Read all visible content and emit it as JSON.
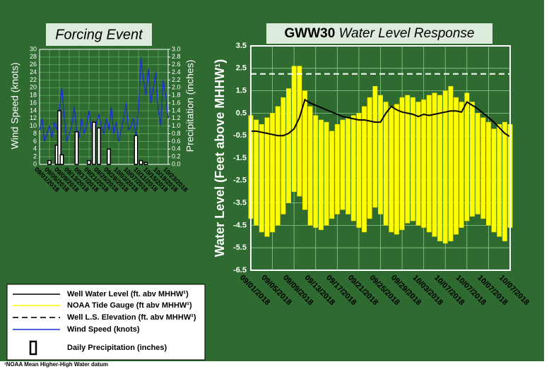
{
  "chart_data": [
    {
      "type": "combo",
      "title": "Forcing Event",
      "ylabel": "Wind Speed (knots)",
      "y2label": "Precipitation (inches)",
      "x": [
        "09/01/2018",
        "09/02/2018",
        "09/03/2018",
        "09/04/2018",
        "09/05/2018",
        "09/06/2018",
        "09/07/2018",
        "09/08/2018",
        "09/09/2018",
        "09/10/2018",
        "09/11/2018",
        "09/12/2018",
        "09/13/2018",
        "09/14/2018",
        "09/15/2018",
        "09/16/2018",
        "09/17/2018",
        "09/18/2018",
        "09/19/2018",
        "09/20/2018",
        "09/21/2018",
        "09/22/2018",
        "09/23/2018",
        "09/24/2018",
        "09/25/2018",
        "09/26/2018",
        "09/27/2018",
        "09/28/2018",
        "09/29/2018",
        "09/30/2018",
        "10/01/2018",
        "10/02/2018",
        "10/03/2018",
        "10/04/2018",
        "10/05/2018",
        "10/06/2018",
        "10/07/2018",
        "10/08/2018",
        "10/09/2018",
        "10/10/2018",
        "10/11/2018",
        "10/12/2018",
        "10/13/2018",
        "10/14/2018",
        "10/15/2018",
        "10/16/2018",
        "10/17/2018",
        "10/18/2018",
        "10/19/2018",
        "10/20/2018",
        "10/21/2018",
        "10/22/2018",
        "10/23/2018"
      ],
      "xticks": [
        "09/01/2018",
        "09/05/2018",
        "09/09/2018",
        "09/13/2018",
        "09/17/2018",
        "09/21/2018",
        "09/25/2018",
        "09/29/2018",
        "10/03/2018",
        "10/07/2018",
        "10/11/2018",
        "10/15/2018",
        "10/19/2018",
        "10/23/2018"
      ],
      "ylim": [
        0,
        30
      ],
      "yticks": [
        0,
        2,
        4,
        6,
        8,
        10,
        12,
        14,
        16,
        18,
        20,
        22,
        24,
        26,
        28,
        30
      ],
      "y2lim": [
        0,
        3
      ],
      "y2ticks": [
        {
          "value": 0,
          "label": "0.0"
        },
        0.2,
        0.4,
        0.6,
        0.8,
        {
          "value": 1,
          "label": "1.0"
        },
        1.2,
        1.4,
        1.6,
        1.8,
        {
          "value": 2,
          "label": "2.0"
        },
        2.2,
        2.4,
        2.6,
        2.8,
        {
          "value": 3,
          "label": "3.0"
        }
      ],
      "grid": true,
      "series": [
        {
          "name": "Wind Speed (knots)",
          "type": "line",
          "color": "#1c2fd0",
          "values": [
            9,
            12,
            6,
            8,
            10,
            7,
            11,
            9,
            14,
            20,
            12,
            6,
            8,
            10,
            15,
            9,
            7,
            12,
            8,
            10,
            14,
            9,
            6,
            11,
            13,
            10,
            8,
            12,
            9,
            15,
            8,
            11,
            6,
            9,
            12,
            16,
            9,
            10,
            12,
            7,
            14,
            28,
            22,
            18,
            25,
            16,
            20,
            24,
            14,
            10,
            22,
            18,
            12
          ]
        },
        {
          "name": "Daily Precipitation (inches)",
          "type": "bar",
          "axis": "y2",
          "color": "#000000",
          "values": [
            0,
            0,
            0,
            0,
            0.1,
            0,
            0,
            0.5,
            1.4,
            0.25,
            0,
            0,
            0,
            0,
            0,
            0.85,
            0,
            0,
            0,
            0,
            0.1,
            0,
            1.1,
            0,
            0.95,
            0,
            0,
            0,
            0.4,
            0,
            0,
            0,
            0,
            0,
            0,
            0,
            0,
            0,
            0,
            0.75,
            0,
            0.1,
            0,
            0.05,
            0,
            0,
            0,
            0,
            0,
            0,
            0,
            0,
            0
          ]
        }
      ]
    },
    {
      "type": "line",
      "title": "GWW30",
      "subtitle": "Water Level Response",
      "ylabel": "Water Level (Feet above MHHW¹)",
      "x": [
        "09/01/2018",
        "09/02/2018",
        "09/03/2018",
        "09/04/2018",
        "09/05/2018",
        "09/06/2018",
        "09/07/2018",
        "09/08/2018",
        "09/09/2018",
        "09/10/2018",
        "09/11/2018",
        "09/12/2018",
        "09/13/2018",
        "09/14/2018",
        "09/15/2018",
        "09/16/2018",
        "09/17/2018",
        "09/18/2018",
        "09/19/2018",
        "09/20/2018",
        "09/21/2018",
        "09/22/2018",
        "09/23/2018",
        "09/24/2018",
        "09/25/2018",
        "09/26/2018",
        "09/27/2018",
        "09/28/2018",
        "09/29/2018",
        "09/30/2018",
        "10/01/2018",
        "10/02/2018",
        "10/03/2018",
        "10/04/2018",
        "10/05/2018",
        "10/06/2018",
        "10/07/2018",
        "10/08/2018",
        "10/09/2018",
        "10/10/2018",
        "10/11/2018",
        "10/12/2018",
        "10/13/2018",
        "10/14/2018",
        "10/15/2018",
        "10/16/2018",
        "10/17/2018",
        "10/18/2018",
        "10/19/2018"
      ],
      "xtick_labels": [
        "09/01/2018",
        "09/05/2018",
        "09/09/2018",
        "09/13/2018",
        "09/17/2018",
        "09/21/2018",
        "09/25/2018",
        "09/29/2018",
        "10/03/2018",
        "10/07/2018",
        "10/07/2018",
        "10/07/2018",
        "10/07/2018"
      ],
      "ylim": [
        -6.5,
        3.5
      ],
      "yticks": [
        3.5,
        2.5,
        1.5,
        0.5,
        -0.5,
        -1.5,
        -2.5,
        -3.5,
        -4.5,
        -5.5,
        -6.5
      ],
      "grid": true,
      "series": [
        {
          "name": "Well Water Level (ft. abv MHHW¹)",
          "type": "line",
          "color": "#000000",
          "values": [
            -0.3,
            -0.3,
            -0.35,
            -0.4,
            -0.45,
            -0.5,
            -0.5,
            -0.4,
            -0.2,
            0.3,
            1.1,
            0.95,
            0.85,
            0.75,
            0.65,
            0.55,
            0.45,
            0.35,
            0.3,
            0.25,
            0.2,
            0.2,
            0.15,
            0.1,
            0.1,
            0.5,
            0.8,
            0.65,
            0.55,
            0.5,
            0.45,
            0.35,
            0.45,
            0.4,
            0.45,
            0.5,
            0.55,
            0.6,
            0.6,
            0.55,
            1.0,
            0.85,
            0.7,
            0.5,
            0.3,
            0.1,
            -0.15,
            -0.4,
            -0.55
          ]
        },
        {
          "name": "NOAA Tide Gauge (ft abv MHHW¹)",
          "type": "range",
          "color": "#ffff00",
          "high": [
            0.4,
            0.2,
            0.0,
            0.3,
            0.5,
            0.8,
            1.2,
            1.6,
            2.6,
            2.6,
            1.5,
            0.8,
            0.4,
            0.2,
            0.1,
            -0.3,
            0.0,
            0.2,
            0.3,
            0.4,
            0.5,
            0.8,
            1.2,
            1.7,
            1.3,
            1.0,
            0.8,
            0.9,
            1.2,
            1.3,
            1.2,
            1.0,
            1.1,
            1.3,
            1.4,
            1.3,
            1.5,
            1.7,
            1.2,
            1.0,
            1.4,
            1.0,
            0.5,
            0.3,
            0.1,
            -0.2,
            0.0,
            0.1,
            0.0
          ],
          "low": [
            -4.2,
            -4.5,
            -4.8,
            -5.0,
            -4.8,
            -4.5,
            -4.0,
            -3.5,
            -3.0,
            -3.2,
            -3.8,
            -4.5,
            -4.6,
            -4.7,
            -4.5,
            -4.2,
            -4.0,
            -3.8,
            -4.0,
            -4.3,
            -4.6,
            -4.8,
            -4.2,
            -3.7,
            -4.0,
            -4.5,
            -4.8,
            -4.9,
            -4.7,
            -4.4,
            -4.3,
            -4.5,
            -4.6,
            -4.8,
            -5.0,
            -5.2,
            -5.3,
            -5.2,
            -4.9,
            -4.6,
            -4.3,
            -4.1,
            -4.0,
            -4.2,
            -4.5,
            -4.8,
            -5.0,
            -5.2,
            -4.6
          ]
        },
        {
          "name": "Well L.S. Elevation (ft. abv MHHW¹)",
          "type": "hline",
          "color": "#ffffff",
          "value": 2.25
        }
      ]
    }
  ],
  "footnote": "¹NOAA Mean Higher-High Water datum"
}
